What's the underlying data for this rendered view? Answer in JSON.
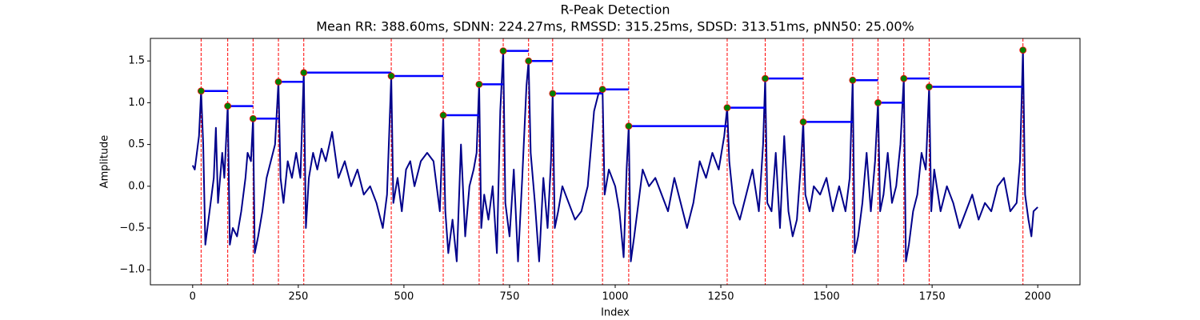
{
  "chart_data": {
    "type": "line",
    "title": "R-Peak Detection",
    "subtitle": "Mean RR: 388.60ms, SDNN: 224.27ms, RMSSD: 315.25ms, SDSD: 313.51ms, pNN50: 25.00%",
    "xlabel": "Index",
    "ylabel": "Amplitude",
    "xlim": [
      -100,
      2100
    ],
    "ylim": [
      -1.18,
      1.77
    ],
    "xticks": [
      0,
      250,
      500,
      750,
      1000,
      1250,
      1500,
      1750,
      2000
    ],
    "yticks": [
      {
        "value": -1.0,
        "label": "−1.0"
      },
      {
        "value": -0.5,
        "label": "−0.5"
      },
      {
        "value": 0.0,
        "label": "0.0"
      },
      {
        "value": 0.5,
        "label": "0.5"
      },
      {
        "value": 1.0,
        "label": "1.0"
      },
      {
        "value": 1.5,
        "label": "1.5"
      }
    ],
    "color": "#00008b",
    "x": [
      0,
      5,
      10,
      15,
      20,
      25,
      30,
      40,
      50,
      55,
      60,
      70,
      75,
      83,
      88,
      95,
      105,
      115,
      125,
      130,
      138,
      143,
      147,
      155,
      165,
      175,
      185,
      195,
      203,
      208,
      215,
      225,
      235,
      245,
      255,
      263,
      268,
      275,
      285,
      295,
      305,
      315,
      330,
      345,
      360,
      375,
      390,
      405,
      420,
      435,
      450,
      460,
      470,
      475,
      485,
      495,
      505,
      515,
      525,
      540,
      555,
      570,
      585,
      593,
      598,
      605,
      615,
      625,
      635,
      645,
      655,
      665,
      672,
      678,
      683,
      690,
      700,
      710,
      720,
      728,
      735,
      740,
      750,
      760,
      770,
      780,
      790,
      795,
      800,
      810,
      820,
      830,
      840,
      848,
      852,
      857,
      865,
      875,
      890,
      905,
      920,
      935,
      950,
      960,
      970,
      975,
      985,
      1000,
      1010,
      1020,
      1027,
      1032,
      1037,
      1045,
      1055,
      1065,
      1080,
      1095,
      1110,
      1125,
      1140,
      1155,
      1170,
      1185,
      1200,
      1215,
      1230,
      1245,
      1258,
      1265,
      1270,
      1280,
      1295,
      1310,
      1325,
      1340,
      1350,
      1355,
      1360,
      1370,
      1380,
      1390,
      1400,
      1410,
      1420,
      1430,
      1440,
      1445,
      1450,
      1460,
      1470,
      1485,
      1500,
      1515,
      1530,
      1545,
      1555,
      1562,
      1567,
      1575,
      1585,
      1595,
      1605,
      1615,
      1622,
      1627,
      1635,
      1645,
      1655,
      1665,
      1675,
      1683,
      1688,
      1695,
      1705,
      1715,
      1725,
      1735,
      1743,
      1748,
      1755,
      1770,
      1785,
      1800,
      1815,
      1830,
      1845,
      1860,
      1875,
      1890,
      1905,
      1920,
      1935,
      1950,
      1958,
      1965,
      1970,
      1978,
      1985,
      1990,
      2000
    ],
    "values": [
      0.25,
      0.2,
      0.4,
      0.6,
      1.14,
      0.5,
      -0.7,
      -0.3,
      0.1,
      0.7,
      -0.2,
      0.4,
      0.1,
      0.96,
      -0.7,
      -0.5,
      -0.6,
      -0.3,
      0.1,
      0.4,
      0.3,
      0.81,
      -0.8,
      -0.6,
      -0.3,
      0.1,
      0.3,
      0.5,
      1.25,
      0.1,
      -0.2,
      0.3,
      0.1,
      0.4,
      0.1,
      1.36,
      -0.5,
      0.1,
      0.4,
      0.2,
      0.45,
      0.3,
      0.65,
      0.1,
      0.3,
      0.0,
      0.2,
      -0.1,
      0.0,
      -0.2,
      -0.5,
      -0.1,
      1.32,
      -0.2,
      0.1,
      -0.3,
      0.2,
      0.3,
      0.0,
      0.3,
      0.4,
      0.3,
      -0.3,
      0.85,
      -0.3,
      -0.8,
      -0.4,
      -0.9,
      0.5,
      -0.6,
      0.0,
      0.2,
      0.4,
      1.22,
      -0.5,
      -0.1,
      -0.4,
      0.0,
      -0.8,
      0.9,
      1.62,
      -0.2,
      -0.6,
      0.2,
      -0.9,
      0.1,
      1.2,
      1.5,
      0.4,
      -0.2,
      -0.9,
      0.1,
      -0.5,
      0.3,
      1.11,
      -0.5,
      -0.3,
      0.0,
      -0.2,
      -0.4,
      -0.3,
      0.0,
      0.9,
      1.1,
      1.16,
      -0.1,
      0.2,
      0.0,
      -0.3,
      -0.85,
      0.2,
      0.72,
      -0.9,
      -0.6,
      -0.2,
      0.2,
      0.0,
      0.1,
      -0.1,
      -0.3,
      0.1,
      -0.2,
      -0.5,
      -0.2,
      0.3,
      0.1,
      0.4,
      0.2,
      0.6,
      0.94,
      0.3,
      -0.2,
      -0.4,
      -0.1,
      0.2,
      -0.3,
      0.5,
      1.29,
      -0.2,
      -0.3,
      0.4,
      -0.5,
      0.6,
      -0.3,
      -0.6,
      -0.4,
      0.3,
      0.77,
      -0.1,
      -0.3,
      0.0,
      -0.1,
      0.1,
      -0.3,
      0.0,
      -0.3,
      0.1,
      1.27,
      -0.8,
      -0.6,
      -0.2,
      0.4,
      -0.3,
      0.3,
      1.0,
      -0.3,
      -0.1,
      0.4,
      -0.2,
      0.0,
      0.5,
      1.29,
      -0.9,
      -0.7,
      -0.3,
      -0.1,
      0.4,
      0.2,
      1.19,
      -0.3,
      0.2,
      -0.3,
      0.0,
      -0.2,
      -0.5,
      -0.3,
      -0.1,
      -0.4,
      -0.2,
      -0.3,
      0.0,
      0.1,
      -0.3,
      -0.2,
      0.3,
      1.63,
      -0.1,
      -0.4,
      -0.6,
      -0.3,
      -0.25
    ],
    "peaks": {
      "x": [
        20,
        83,
        143,
        203,
        263,
        470,
        593,
        678,
        735,
        795,
        852,
        970,
        1032,
        1265,
        1355,
        1445,
        1562,
        1622,
        1683,
        1743,
        1965
      ],
      "values": [
        1.14,
        0.96,
        0.81,
        1.25,
        1.36,
        1.32,
        0.85,
        1.22,
        1.62,
        1.5,
        1.11,
        1.16,
        0.72,
        0.94,
        1.29,
        0.77,
        1.27,
        1.0,
        1.29,
        1.19,
        1.63
      ],
      "color": "#008000",
      "edge_color": "#ff0000",
      "line_color": "#ff0000",
      "interval_color": "#0000ff"
    }
  }
}
